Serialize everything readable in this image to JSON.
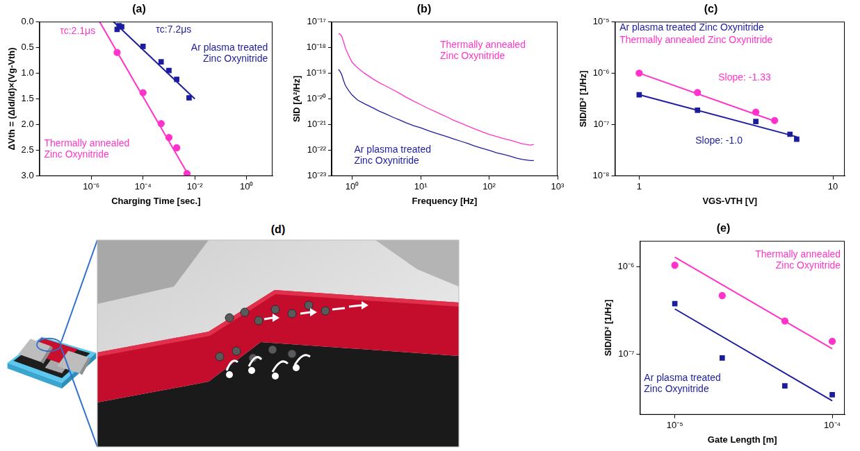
{
  "chart_data": [
    {
      "type": "scatter",
      "title": "(a)",
      "x_label": "Charging Time [sec.]",
      "y_label": "ΔVth = (ΔId/Id)×(Vg-Vth)",
      "log": "x",
      "grid": false,
      "xlim": [
        1e-08,
        10
      ],
      "xticks": [
        {
          "value": 1e-06,
          "label": "10⁻⁶"
        },
        {
          "value": 0.0001,
          "label": "10⁻⁴"
        },
        {
          "value": 0.01,
          "label": "10⁻²"
        },
        {
          "value": 1,
          "label": "10⁰"
        }
      ],
      "ylim": [
        3.0,
        0.0
      ],
      "yticks": [
        {
          "value": 0,
          "label": "0.0"
        },
        {
          "value": 0.5,
          "label": "0.5"
        },
        {
          "value": 1,
          "label": "1.0"
        },
        {
          "value": 1.5,
          "label": "1.5"
        },
        {
          "value": 2,
          "label": "2.0"
        },
        {
          "value": 2.5,
          "label": "2.5"
        },
        {
          "value": 3,
          "label": "3.0"
        }
      ],
      "series": [
        {
          "name": "Ar plasma treated Zinc Oxynitride",
          "color": "#1c1c9e",
          "marker": "square",
          "line_style": "none",
          "x": [
            1e-05,
            1.2e-05,
            1.5e-05,
            0.0001,
            0.0005,
            0.001,
            0.002,
            0.006
          ],
          "values": [
            0.15,
            0.08,
            0.1,
            0.48,
            0.78,
            0.95,
            1.12,
            1.48
          ],
          "fit": {
            "x": [
              7.2e-06,
              0.01
            ],
            "values": [
              0,
              1.5
            ]
          }
        },
        {
          "name": "Thermally annealed Zinc Oxynitride",
          "color": "#ff33cc",
          "marker": "circle",
          "line_style": "none",
          "x": [
            1e-05,
            0.0001,
            0.0005,
            0.001,
            0.002,
            0.005
          ],
          "values": [
            0.6,
            1.38,
            1.98,
            2.25,
            2.45,
            2.95
          ],
          "fit": {
            "x": [
              2.1e-06,
              0.006
            ],
            "values": [
              0,
              3.0
            ]
          }
        }
      ],
      "annotations": [
        {
          "text": "τc:7.2μs",
          "color": "#1c1c9e"
        },
        {
          "text": "τc:2.1μs",
          "color": "#ff33cc"
        }
      ]
    },
    {
      "type": "line",
      "title": "(b)",
      "x_label": "Frequency [Hz]",
      "y_label": "SID [A²/Hz]",
      "log": true,
      "grid": false,
      "xlim": [
        0.5,
        1000
      ],
      "xticks": [
        {
          "value": 1,
          "label": "10⁰"
        },
        {
          "value": 10,
          "label": "10¹"
        },
        {
          "value": 100,
          "label": "10²"
        },
        {
          "value": 1000,
          "label": "10³"
        }
      ],
      "ylim": [
        1e-23,
        1e-17
      ],
      "yticks": [
        {
          "value": 1e-23,
          "label": "10⁻²³"
        },
        {
          "value": 1e-22,
          "label": "10⁻²²"
        },
        {
          "value": 1e-21,
          "label": "10⁻²¹"
        },
        {
          "value": 1e-20,
          "label": "10⁻²⁰"
        },
        {
          "value": 1e-19,
          "label": "10⁻¹⁹"
        },
        {
          "value": 1e-18,
          "label": "10⁻¹⁸"
        },
        {
          "value": 1e-17,
          "label": "10⁻¹⁷"
        }
      ],
      "series": [
        {
          "name": "Ar plasma treated Zinc Oxynitride",
          "color": "#1c1c9e",
          "marker": "none",
          "line_style": "solid",
          "x": [
            0.63,
            0.66,
            0.7,
            0.75,
            0.8,
            0.9,
            1,
            1.2,
            1.5,
            2,
            2.5,
            3,
            4,
            5,
            6,
            8,
            10,
            13,
            16,
            20,
            25,
            30,
            40,
            50,
            60,
            80,
            100,
            130,
            160,
            200,
            250,
            300,
            400,
            450
          ],
          "values": [
            1.4e-19,
            1.2e-19,
            9e-20,
            5e-20,
            3.2e-20,
            2e-20,
            1.4e-20,
            9e-21,
            6.5e-21,
            4.5e-21,
            3.3e-21,
            2.7e-21,
            1.9e-21,
            1.5e-21,
            1.2e-21,
            9e-22,
            7.5e-22,
            5.8e-22,
            4.8e-22,
            4e-22,
            3.3e-22,
            2.8e-22,
            2.2e-22,
            1.8e-22,
            1.5e-22,
            1.2e-22,
            1e-22,
            8e-23,
            7e-23,
            6e-23,
            5e-23,
            4.5e-23,
            4e-23,
            4e-23
          ]
        },
        {
          "name": "Thermally annealed Zinc Oxynitride",
          "color": "#ff33cc",
          "marker": "none",
          "line_style": "solid",
          "x": [
            0.63,
            0.66,
            0.7,
            0.75,
            0.8,
            0.9,
            1,
            1.2,
            1.5,
            2,
            2.5,
            3,
            4,
            5,
            6,
            8,
            10,
            13,
            16,
            20,
            25,
            30,
            40,
            50,
            60,
            80,
            100,
            130,
            160,
            200,
            250,
            300,
            400,
            450
          ],
          "values": [
            3.5e-18,
            3.3e-18,
            2.8e-18,
            1.6e-18,
            9e-19,
            4.5e-19,
            2.6e-19,
            1.6e-19,
            1e-19,
            6e-20,
            4.2e-20,
            3.3e-20,
            2.2e-20,
            1.6e-20,
            1.2e-20,
            8e-21,
            6e-21,
            4.2e-21,
            3.3e-21,
            2.5e-21,
            1.9e-21,
            1.5e-21,
            1.1e-21,
            8.5e-22,
            7e-22,
            5.2e-22,
            4.2e-22,
            3.4e-22,
            2.9e-22,
            2.5e-22,
            2.1e-22,
            1.8e-22,
            1.6e-22,
            1.7e-22
          ]
        }
      ]
    },
    {
      "type": "scatter",
      "title": "(c)",
      "x_label": "VGS-VTH [V]",
      "y_label": "SID/ID² [1/Hz]",
      "log": true,
      "grid": false,
      "xlim": [
        0.75,
        11.5
      ],
      "xticks": [
        1,
        10
      ],
      "ylim": [
        1e-08,
        1e-05
      ],
      "yticks": [
        {
          "value": 1e-08,
          "label": "10⁻⁸"
        },
        {
          "value": 1e-07,
          "label": "10⁻⁷"
        },
        {
          "value": 1e-06,
          "label": "10⁻⁶"
        },
        {
          "value": 1e-05,
          "label": "10⁻⁵"
        }
      ],
      "series": [
        {
          "name": "Ar plasma treated Zinc Oxynitride",
          "color": "#1c1c9e",
          "marker": "square",
          "line_style": "none",
          "x": [
            1,
            2,
            4,
            6,
            6.5
          ],
          "values": [
            3.8e-07,
            1.9e-07,
            1.15e-07,
            6.5e-08,
            5.2e-08
          ],
          "fit": {
            "x": [
              1,
              6.5
            ],
            "values": [
              3.8e-07,
              5.8e-08
            ]
          }
        },
        {
          "name": "Thermally annealed Zinc Oxynitride",
          "color": "#ff33cc",
          "marker": "circle",
          "line_style": "none",
          "x": [
            1,
            2,
            4,
            5
          ],
          "values": [
            1e-06,
            4.2e-07,
            1.75e-07,
            1.2e-07
          ],
          "fit": {
            "x": [
              1,
              5
            ],
            "values": [
              1e-06,
              1.17e-07
            ]
          }
        }
      ],
      "annotations": [
        {
          "text": "Slope: -1.33",
          "color": "#ff33cc"
        },
        {
          "text": "Slope: -1.0",
          "color": "#1c1c9e"
        }
      ]
    },
    {
      "type": "scatter",
      "title": "(e)",
      "x_label": "Gate Length [m]",
      "y_label": "SID/ID² [1/Hz]",
      "log": true,
      "grid": false,
      "xlim": [
        6e-06,
        0.00012
      ],
      "xticks": [
        {
          "value": 1e-05,
          "label": "10⁻⁵"
        },
        {
          "value": 0.0001,
          "label": "10⁻⁴"
        }
      ],
      "ylim": [
        2e-08,
        2e-06
      ],
      "yticks": [
        {
          "value": 1e-07,
          "label": "10⁻⁷"
        },
        {
          "value": 1e-06,
          "label": "10⁻⁶"
        }
      ],
      "series": [
        {
          "name": "Ar plasma treated Zinc Oxynitride",
          "color": "#1c1c9e",
          "marker": "square",
          "line_style": "none",
          "x": [
            1e-05,
            2e-05,
            5e-05,
            0.0001
          ],
          "values": [
            3.8e-07,
            9e-08,
            4.3e-08,
            3.4e-08
          ],
          "fit": {
            "x": [
              1e-05,
              0.0001
            ],
            "values": [
              3.3e-07,
              2.9e-08
            ]
          }
        },
        {
          "name": "Thermally annealed Zinc Oxynitride",
          "color": "#ff33cc",
          "marker": "circle",
          "line_style": "none",
          "x": [
            1e-05,
            2e-05,
            5e-05,
            0.0001
          ],
          "values": [
            1.05e-06,
            4.7e-07,
            2.4e-07,
            1.4e-07
          ],
          "fit": {
            "x": [
              1e-05,
              0.0001
            ],
            "values": [
              1.3e-06,
              1.15e-07
            ]
          }
        }
      ]
    }
  ],
  "diagram": {
    "title": "(d)"
  }
}
